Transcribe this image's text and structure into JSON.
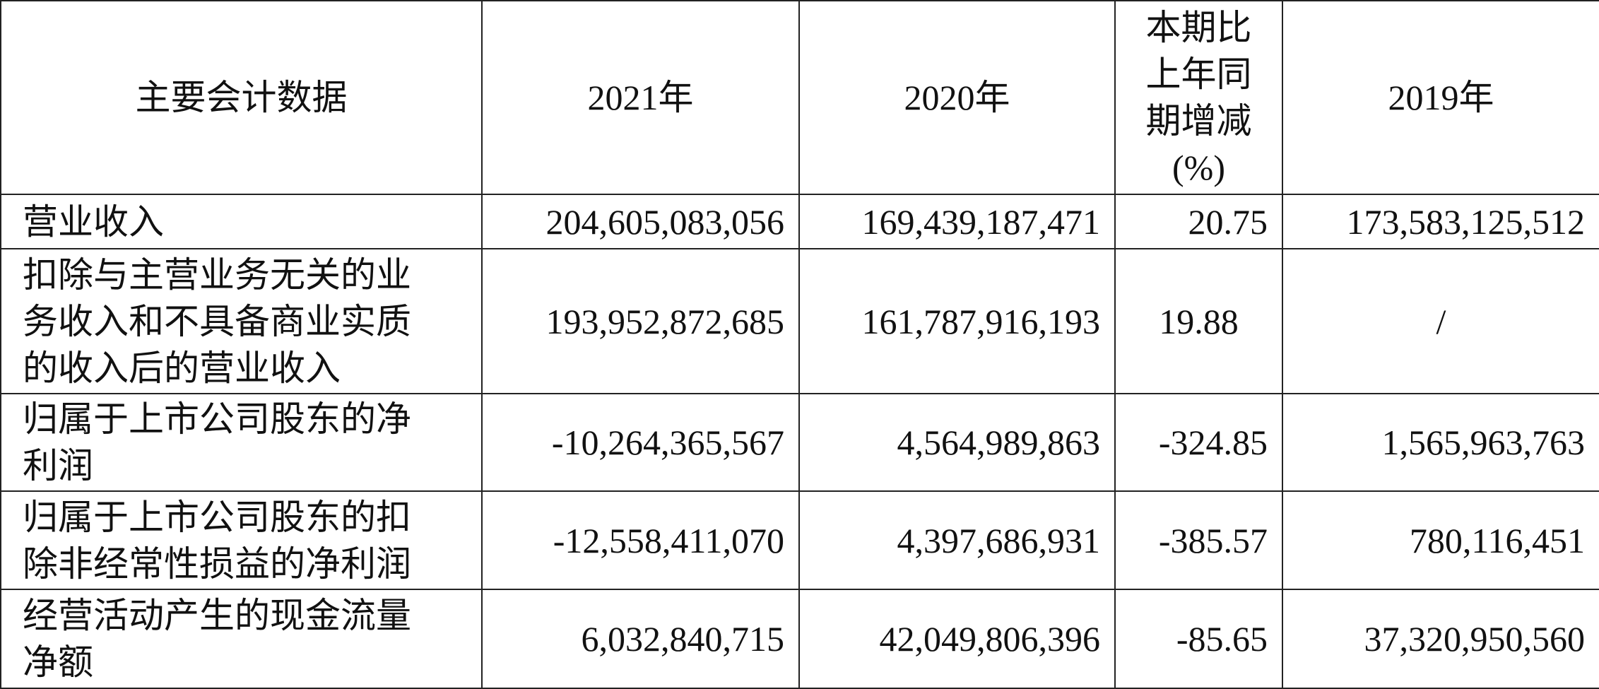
{
  "table": {
    "header": [
      "主要会计数据",
      "2021年",
      "2020年",
      "本期比上年同期增减(%)",
      "2019年"
    ],
    "rows": [
      [
        "营业收入",
        "204,605,083,056",
        "169,439,187,471",
        "20.75",
        "173,583,125,512"
      ],
      [
        "扣除与主营业务无关的业务收入和不具备商业实质的收入后的营业收入",
        "193,952,872,685",
        "161,787,916,193",
        "19.88",
        "/"
      ],
      [
        "归属于上市公司股东的净利润",
        "-10,264,365,567",
        "4,564,989,863",
        "-324.85",
        "1,565,963,763"
      ],
      [
        "归属于上市公司股东的扣除非经常性损益的净利润",
        "-12,558,411,070",
        "4,397,686,931",
        "-385.57",
        "780,116,451"
      ],
      [
        "经营活动产生的现金流量净额",
        "6,032,840,715",
        "42,049,806,396",
        "-85.65",
        "37,320,950,560"
      ]
    ]
  }
}
